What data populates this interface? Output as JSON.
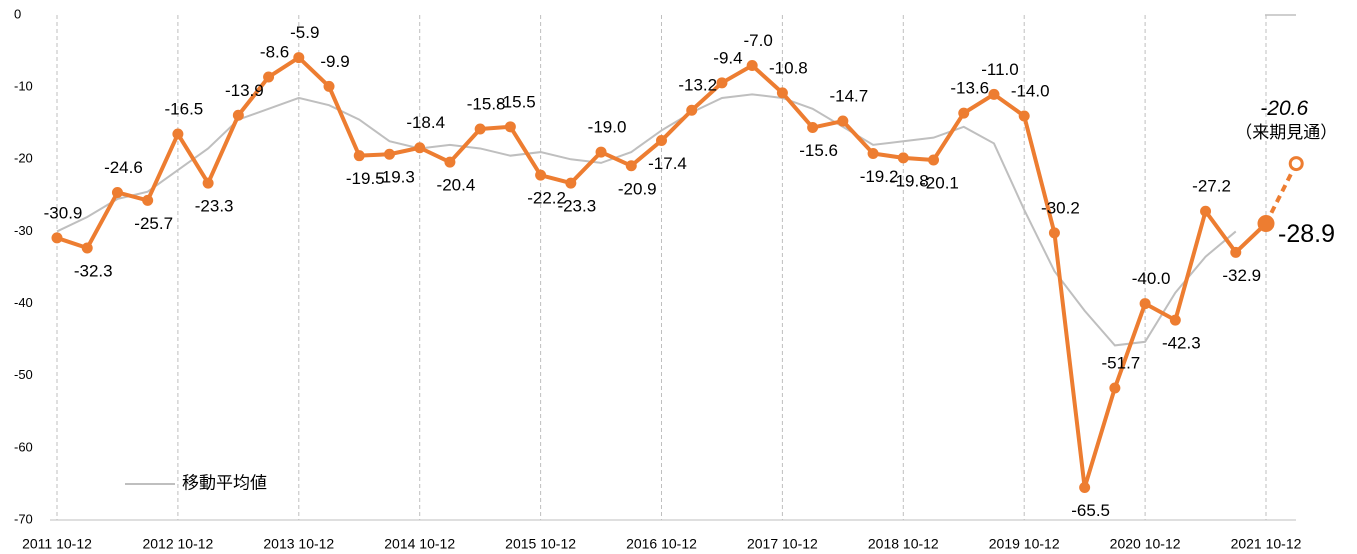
{
  "chart_data": {
    "type": "line",
    "categories": [
      "2011 10-12",
      null,
      null,
      null,
      "2012 10-12",
      null,
      null,
      null,
      "2013 10-12",
      null,
      null,
      null,
      "2014 10-12",
      null,
      null,
      null,
      "2015 10-12",
      null,
      null,
      null,
      "2016 10-12",
      null,
      null,
      null,
      "2017 10-12",
      null,
      null,
      null,
      "2018 10-12",
      null,
      null,
      null,
      "2019 10-12",
      null,
      null,
      null,
      "2020 10-12",
      null,
      null,
      null,
      "2021 10-12",
      null
    ],
    "series": [
      {
        "color": "#ed7d31",
        "values": [
          -30.9,
          -32.3,
          -24.6,
          -25.7,
          -16.5,
          -23.3,
          -13.9,
          -8.6,
          -5.9,
          -9.9,
          -19.5,
          -19.3,
          -18.4,
          -20.4,
          -15.8,
          -15.5,
          -22.2,
          -23.3,
          -19.0,
          -20.9,
          -17.4,
          -13.2,
          -9.4,
          -7.0,
          -10.8,
          -15.6,
          -14.7,
          -19.2,
          -19.8,
          -20.1,
          -13.6,
          -11.0,
          -14.0,
          -30.2,
          -65.5,
          -51.7,
          -40.0,
          -42.3,
          -27.2,
          -32.9,
          -28.9,
          -20.6
        ],
        "value_labels": [
          "-30.9",
          "-32.3",
          "-24.6",
          "-25.7",
          "-16.5",
          "-23.3",
          "-13.9",
          "-8.6",
          "-5.9",
          "-9.9",
          "-19.5",
          "-19.3",
          "-18.4",
          "-20.4",
          "-15.8",
          "-15.5",
          "-22.2",
          "-23.3",
          "-19.0",
          "-20.9",
          "-17.4",
          "-13.2",
          "-9.4",
          "-7.0",
          "-10.8",
          "-15.6",
          "-14.7",
          "-19.2",
          "-19.8",
          "-20.1",
          "-13.6",
          "-11.0",
          "-14.0",
          "-30.2",
          "-65.5",
          "-51.7",
          "-40.0",
          "-42.3",
          "-27.2",
          "-32.9",
          "-28.9",
          "-20.6"
        ]
      },
      {
        "name": "移動平均値",
        "color": "#bfbfbf",
        "values": [
          -30,
          -28,
          -25.5,
          -24.5,
          -21.5,
          -18.5,
          -14.5,
          -13,
          -11.5,
          -12.5,
          -14.5,
          -17.5,
          -18.5,
          -18,
          -18.5,
          -19.5,
          -19,
          -20,
          -20.5,
          -19,
          -16,
          -13.5,
          -11.5,
          -11,
          -11.5,
          -13,
          -15.5,
          -18,
          -17.5,
          -17,
          -15.5,
          -17.8,
          -27,
          -35.5,
          -41,
          -45.8,
          -45.3,
          -38.5,
          -33.5,
          -30,
          null,
          null
        ]
      }
    ],
    "annotation": "（来期見通）",
    "ylim": [
      -70,
      0
    ],
    "yticks": [
      0,
      -10,
      -20,
      -30,
      -40,
      -50,
      -60,
      -70
    ],
    "legend": "lower-left"
  }
}
